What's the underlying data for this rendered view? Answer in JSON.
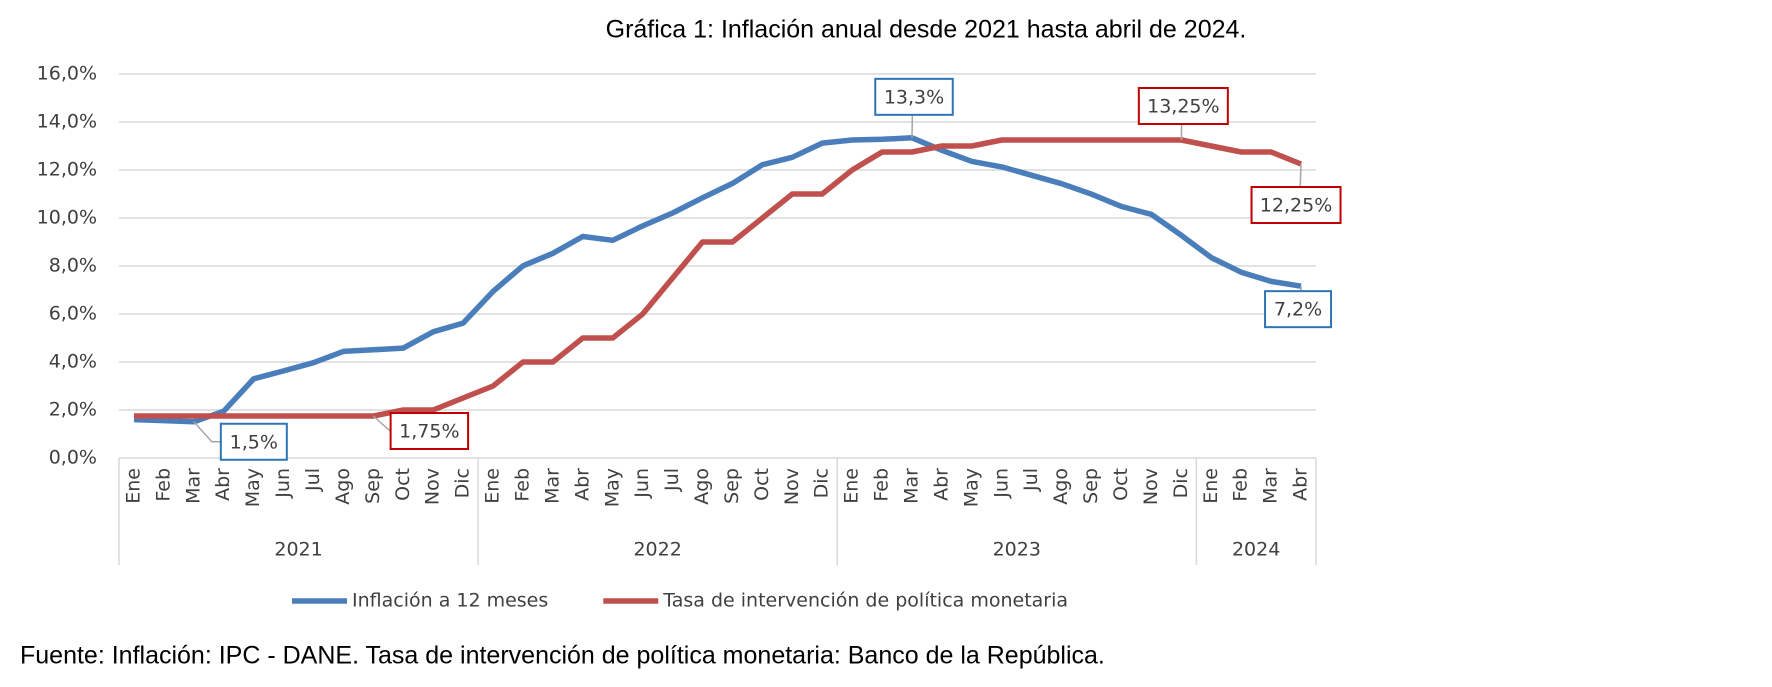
{
  "chart_data": {
    "type": "line",
    "title": "Gráfica 1: Inflación anual desde 2021 hasta abril de 2024.",
    "source": "Fuente: Inflación: IPC - DANE. Tasa de intervención de política monetaria: Banco de la República.",
    "categories": [
      "Ene",
      "Feb",
      "Mar",
      "Abr",
      "May",
      "Jun",
      "Jul",
      "Ago",
      "Sep",
      "Oct",
      "Nov",
      "Dic",
      "Ene",
      "Feb",
      "Mar",
      "Abr",
      "May",
      "Jun",
      "Jul",
      "Ago",
      "Sep",
      "Oct",
      "Nov",
      "Dic",
      "Ene",
      "Feb",
      "Mar",
      "Abr",
      "May",
      "Jun",
      "Jul",
      "Ago",
      "Sep",
      "Oct",
      "Nov",
      "Dic",
      "Ene",
      "Feb",
      "Mar",
      "Abr"
    ],
    "year_groups": [
      {
        "label": "2021",
        "span": 12
      },
      {
        "label": "2022",
        "span": 12
      },
      {
        "label": "2023",
        "span": 12
      },
      {
        "label": "2024",
        "span": 4
      }
    ],
    "series": [
      {
        "name": "Inflación a 12 meses",
        "color": "#4a7ebb",
        "values": [
          1.6,
          1.56,
          1.51,
          1.95,
          3.3,
          3.63,
          3.97,
          4.44,
          4.51,
          4.58,
          5.26,
          5.62,
          6.94,
          8.01,
          8.53,
          9.23,
          9.07,
          9.67,
          10.21,
          10.84,
          11.44,
          12.22,
          12.53,
          13.12,
          13.25,
          13.28,
          13.34,
          12.82,
          12.36,
          12.13,
          11.78,
          11.43,
          10.99,
          10.48,
          10.15,
          9.28,
          8.35,
          7.74,
          7.36,
          7.16
        ],
        "value_labels": [
          null,
          null,
          "1,5%",
          null,
          null,
          null,
          null,
          null,
          null,
          null,
          null,
          null,
          null,
          null,
          null,
          null,
          null,
          null,
          null,
          null,
          null,
          null,
          null,
          null,
          null,
          null,
          "13,3%",
          null,
          null,
          null,
          null,
          null,
          null,
          null,
          null,
          null,
          null,
          null,
          null,
          "7,2%"
        ]
      },
      {
        "name": "Tasa de intervención de política monetaria",
        "color": "#c0504d",
        "values": [
          1.75,
          1.75,
          1.75,
          1.75,
          1.75,
          1.75,
          1.75,
          1.75,
          1.75,
          2.0,
          2.0,
          2.5,
          3.0,
          4.0,
          4.0,
          5.0,
          5.0,
          6.0,
          7.5,
          9.0,
          9.0,
          10.0,
          11.0,
          11.0,
          12.0,
          12.75,
          12.75,
          13.0,
          13.0,
          13.25,
          13.25,
          13.25,
          13.25,
          13.25,
          13.25,
          13.25,
          13.0,
          12.75,
          12.75,
          12.25
        ],
        "value_labels": [
          null,
          null,
          null,
          null,
          null,
          null,
          null,
          null,
          "1,75%",
          null,
          null,
          null,
          null,
          null,
          null,
          null,
          null,
          null,
          null,
          null,
          null,
          null,
          null,
          null,
          null,
          null,
          null,
          null,
          null,
          null,
          null,
          null,
          null,
          null,
          null,
          "13,25%",
          null,
          null,
          null,
          "12,25%"
        ]
      }
    ],
    "ylim": [
      0,
      16
    ],
    "yticks": [
      {
        "value": 0,
        "label": "0,0%"
      },
      {
        "value": 2,
        "label": "2,0%"
      },
      {
        "value": 4,
        "label": "4,0%"
      },
      {
        "value": 6,
        "label": "6,0%"
      },
      {
        "value": 8,
        "label": "8,0%"
      },
      {
        "value": 10,
        "label": "10,0%"
      },
      {
        "value": 12,
        "label": "12,0%"
      },
      {
        "value": 14,
        "label": "14,0%"
      },
      {
        "value": 16,
        "label": "16,0%"
      }
    ],
    "grid": true
  }
}
